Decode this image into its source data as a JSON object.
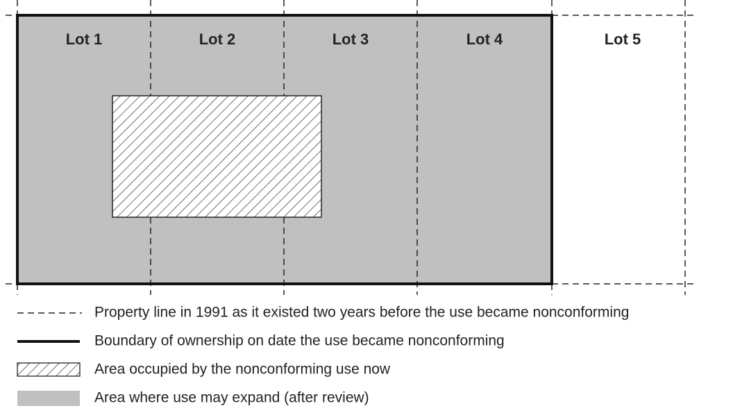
{
  "lots": [
    "Lot 1",
    "Lot 2",
    "Lot 3",
    "Lot 4",
    "Lot 5"
  ],
  "legend": [
    "Property line in 1991 as it existed two years before the use became nonconforming",
    "Boundary of ownership on date the use became nonconforming",
    "Area occupied by the nonconforming use now",
    "Area where use may expand (after review)"
  ]
}
